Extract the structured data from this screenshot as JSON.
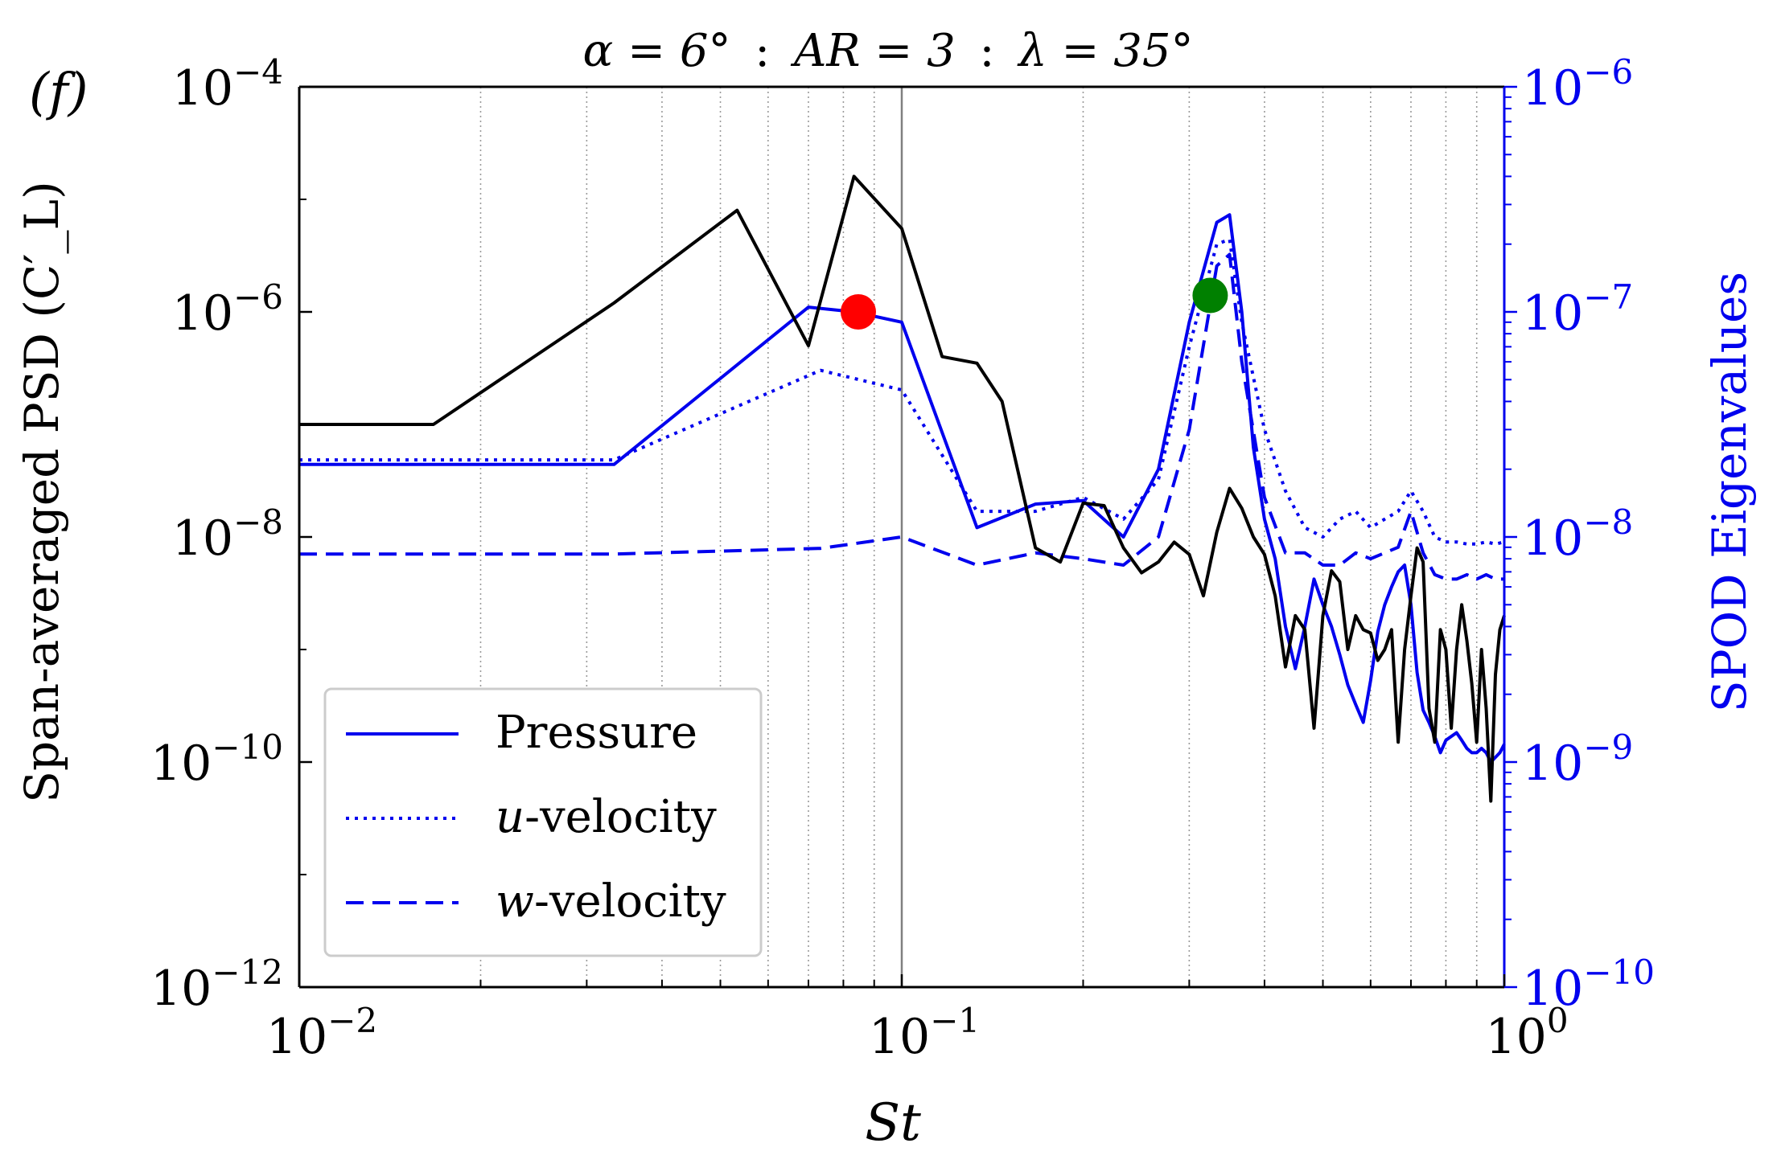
{
  "panel_label": "(f)",
  "title": {
    "alpha": "α = 6°",
    "ar": "AR = 3",
    "lambda": "λ = 35°",
    "sep": ":"
  },
  "colors": {
    "black": "#000000",
    "blue": "#0000ee",
    "grid": "#9a9a9a",
    "red": "#ff0000",
    "green": "#008000"
  },
  "chart_data": {
    "type": "line",
    "xscale": "log",
    "xlim": [
      0.01,
      1
    ],
    "xlabel": "St",
    "ylabel_left": "Span-averaged PSD (C′_L)",
    "ylim_left": [
      1e-12,
      0.0001
    ],
    "yscale_left": "log",
    "ylabel_right": "SPOD Eigenvalues",
    "ylim_right": [
      1e-10,
      1e-06
    ],
    "yscale_right": "log",
    "x_ticks": [
      {
        "value": 0.01,
        "base": "10",
        "exp": "−2"
      },
      {
        "value": 0.1,
        "base": "10",
        "exp": "−1"
      },
      {
        "value": 1,
        "base": "10",
        "exp": "0"
      }
    ],
    "y_ticks_left": [
      {
        "value": 0.0001,
        "base": "10",
        "exp": "−4"
      },
      {
        "value": 1e-06,
        "base": "10",
        "exp": "−6"
      },
      {
        "value": 1e-08,
        "base": "10",
        "exp": "−8"
      },
      {
        "value": 1e-10,
        "base": "10",
        "exp": "−10"
      },
      {
        "value": 1e-12,
        "base": "10",
        "exp": "−12"
      }
    ],
    "y_ticks_right": [
      {
        "value": 1e-06,
        "base": "10",
        "exp": "−6"
      },
      {
        "value": 1e-07,
        "base": "10",
        "exp": "−7"
      },
      {
        "value": 1e-08,
        "base": "10",
        "exp": "−8"
      },
      {
        "value": 1e-09,
        "base": "10",
        "exp": "−9"
      },
      {
        "value": 1e-10,
        "base": "10",
        "exp": "−10"
      }
    ],
    "vertical_line": 0.1,
    "grid": "vertical minor (dotted)",
    "series": [
      {
        "name": "Span-averaged PSD",
        "axis": "left",
        "color": "#000000",
        "style": "solid",
        "x": [
          0.01,
          0.0167,
          0.0333,
          0.0533,
          0.07,
          0.0833,
          0.1,
          0.1167,
          0.1333,
          0.1467,
          0.1667,
          0.1833,
          0.2,
          0.2167,
          0.2333,
          0.25,
          0.2667,
          0.2833,
          0.3,
          0.3167,
          0.3333,
          0.35,
          0.3667,
          0.3833,
          0.4,
          0.4167,
          0.4333,
          0.45,
          0.4667,
          0.4833,
          0.5,
          0.5167,
          0.5333,
          0.55,
          0.5667,
          0.5833,
          0.6,
          0.6167,
          0.6333,
          0.65,
          0.6667,
          0.6833,
          0.7,
          0.7167,
          0.7333,
          0.75,
          0.7667,
          0.7833,
          0.8,
          0.8167,
          0.8333,
          0.85,
          0.8667,
          0.8833,
          0.9,
          0.9167,
          0.9333,
          0.95,
          0.9667,
          0.9833,
          1.0
        ],
        "y": [
          1e-07,
          1e-07,
          1.2e-06,
          8e-06,
          5e-07,
          1.6e-05,
          5.5e-06,
          4e-07,
          3.5e-07,
          1.6e-07,
          8e-09,
          6e-09,
          2e-08,
          1.9e-08,
          8e-09,
          4.8e-09,
          6e-09,
          9e-09,
          7e-09,
          3e-09,
          1.1e-08,
          2.7e-08,
          1.8e-08,
          1e-08,
          7e-09,
          3e-09,
          7e-10,
          2e-09,
          1.5e-09,
          2e-10,
          2e-09,
          5e-09,
          4e-09,
          1e-09,
          2e-09,
          1.5e-09,
          1.4e-09,
          8e-10,
          1e-09,
          1.5e-09,
          1.5e-10,
          1e-09,
          3e-09,
          8e-09,
          6e-09,
          3e-10,
          1.5e-10,
          1.5e-09,
          1e-09,
          2e-10,
          1e-09,
          2.5e-09,
          1.2e-09,
          5e-10,
          1.5e-10,
          1e-09,
          3e-10,
          4.5e-11,
          6e-10,
          1.5e-09,
          2e-09
        ]
      },
      {
        "name": "Pressure",
        "axis": "right",
        "color": "#0000ee",
        "style": "solid",
        "x": [
          0.01,
          0.0333,
          0.07,
          0.0833,
          0.1,
          0.1333,
          0.1667,
          0.2,
          0.2333,
          0.2667,
          0.3,
          0.3333,
          0.35,
          0.3667,
          0.3833,
          0.4,
          0.4167,
          0.4333,
          0.45,
          0.4667,
          0.4833,
          0.5,
          0.5167,
          0.5333,
          0.55,
          0.5667,
          0.5833,
          0.6,
          0.6167,
          0.6333,
          0.65,
          0.6667,
          0.6833,
          0.7,
          0.7167,
          0.7333,
          0.75,
          0.7667,
          0.7833,
          0.8,
          0.8167,
          0.8333,
          0.85,
          0.8667,
          0.8833,
          0.9,
          0.9167,
          0.9333,
          0.95,
          0.9667,
          0.9833,
          1.0
        ],
        "y": [
          2.1e-08,
          2.1e-08,
          1.05e-07,
          1e-07,
          9e-08,
          1.1e-08,
          1.4e-08,
          1.45e-08,
          1e-08,
          2e-08,
          9e-08,
          2.5e-07,
          2.7e-07,
          1e-07,
          2.5e-08,
          1.2e-08,
          8e-09,
          4e-09,
          2.6e-09,
          4e-09,
          6.5e-09,
          5e-09,
          4e-09,
          3e-09,
          2.2e-09,
          1.8e-09,
          1.5e-09,
          2.3e-09,
          3.8e-09,
          5e-09,
          6e-09,
          7e-09,
          7.5e-09,
          5e-09,
          2.5e-09,
          1.7e-09,
          1.5e-09,
          1.3e-09,
          1.1e-09,
          1.25e-09,
          1.3e-09,
          1.35e-09,
          1.25e-09,
          1.15e-09,
          1.1e-09,
          1.1e-09,
          1.15e-09,
          1.1e-09,
          1e-09,
          1.05e-09,
          1.1e-09,
          1.2e-09
        ]
      },
      {
        "name": "u-velocity",
        "axis": "right",
        "color": "#0000ee",
        "style": "dotted",
        "x": [
          0.01,
          0.0333,
          0.0733,
          0.1,
          0.1333,
          0.1667,
          0.2,
          0.2333,
          0.2667,
          0.3,
          0.3333,
          0.35,
          0.3667,
          0.4,
          0.4333,
          0.4667,
          0.5,
          0.5333,
          0.5667,
          0.6,
          0.6333,
          0.6667,
          0.7,
          0.7333,
          0.7667,
          0.8,
          0.8333,
          0.8667,
          0.9,
          0.9333,
          0.9667,
          1.0
        ],
        "y": [
          2.2e-08,
          2.2e-08,
          5.5e-08,
          4.5e-08,
          1.3e-08,
          1.3e-08,
          1.5e-08,
          1.2e-08,
          1.8e-08,
          7e-08,
          2e-07,
          2.1e-07,
          9e-08,
          3e-08,
          1.6e-08,
          1.1e-08,
          1e-08,
          1.2e-08,
          1.3e-08,
          1.1e-08,
          1.2e-08,
          1.3e-08,
          1.6e-08,
          1.3e-08,
          1e-08,
          9.5e-09,
          9.5e-09,
          9.3e-09,
          9.3e-09,
          9.5e-09,
          9.3e-09,
          9.5e-09
        ]
      },
      {
        "name": "w-velocity",
        "axis": "right",
        "color": "#0000ee",
        "style": "dashed",
        "x": [
          0.01,
          0.0333,
          0.0733,
          0.1,
          0.1333,
          0.1667,
          0.2,
          0.2333,
          0.2667,
          0.3,
          0.3333,
          0.35,
          0.3667,
          0.4,
          0.4333,
          0.4667,
          0.5,
          0.5333,
          0.5667,
          0.6,
          0.6333,
          0.6667,
          0.7,
          0.7333,
          0.7667,
          0.8,
          0.8333,
          0.8667,
          0.9,
          0.9333,
          0.9667,
          1.0
        ],
        "y": [
          8.4e-09,
          8.4e-09,
          8.9e-09,
          1e-08,
          7.5e-09,
          8.5e-09,
          8e-09,
          7.5e-09,
          1e-08,
          3e-08,
          1.6e-07,
          1.8e-07,
          6e-08,
          1.5e-08,
          8.5e-09,
          8.5e-09,
          7.5e-09,
          7.5e-09,
          8.5e-09,
          8e-09,
          8.5e-09,
          9e-09,
          1.3e-08,
          8.5e-09,
          6.8e-09,
          6.5e-09,
          6.5e-09,
          6.8e-09,
          6.5e-09,
          6.8e-09,
          6.5e-09,
          6.5e-09
        ]
      }
    ],
    "markers": [
      {
        "name": "red-marker",
        "x": 0.0847,
        "y_left": 1e-06,
        "color": "#ff0000"
      },
      {
        "name": "green-marker",
        "x": 0.325,
        "y_left": 1.4e-06,
        "color": "#008000"
      }
    ],
    "legend": {
      "position": "lower-left",
      "entries": [
        {
          "label": "Pressure",
          "style": "solid"
        },
        {
          "label_italic": "u",
          "label_rest": "-velocity",
          "style": "dotted"
        },
        {
          "label_italic": "w",
          "label_rest": "-velocity",
          "style": "dashed"
        }
      ]
    }
  }
}
